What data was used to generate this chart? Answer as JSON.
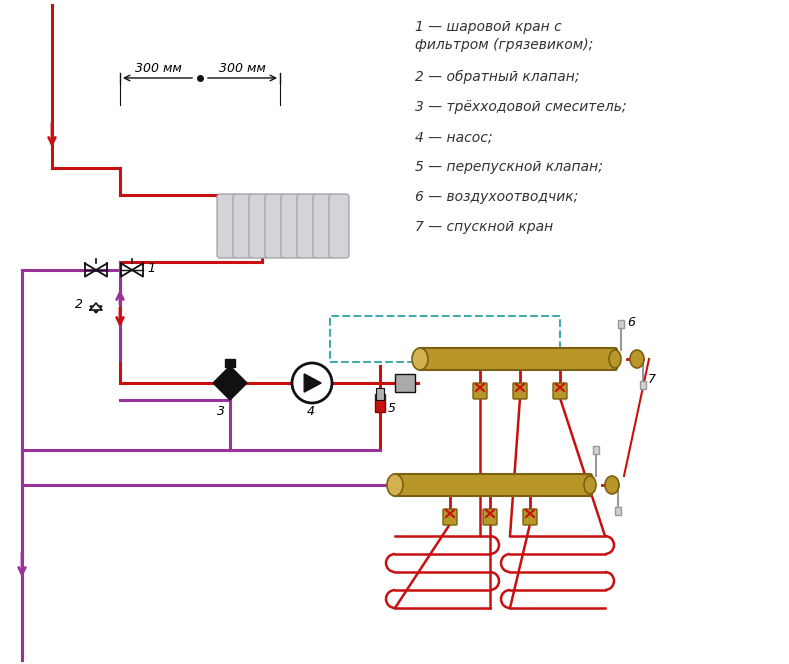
{
  "bg_color": "#ffffff",
  "red": "#c81010",
  "purple": "#993399",
  "gold": "#b8962a",
  "gold_dark": "#7a6010",
  "gold_light": "#d4b050",
  "teal": "#44aaaa",
  "gray_light": "#cccccc",
  "gray_med": "#999999",
  "black": "#111111",
  "legend": [
    [
      "1 — шаровой кран с",
      20
    ],
    [
      "фильтром (грязевиком);",
      38
    ],
    [
      "2 — обратный клапан;",
      70
    ],
    [
      "3 — трёхходовой смеситель;",
      100
    ],
    [
      "4 — насос;",
      130
    ],
    [
      "5 — перепускной клапан;",
      160
    ],
    [
      "6 — воздухоотводчик;",
      190
    ],
    [
      "7 — спускной кран",
      220
    ]
  ],
  "dim1": "300 мм",
  "dim2": "300 мм"
}
